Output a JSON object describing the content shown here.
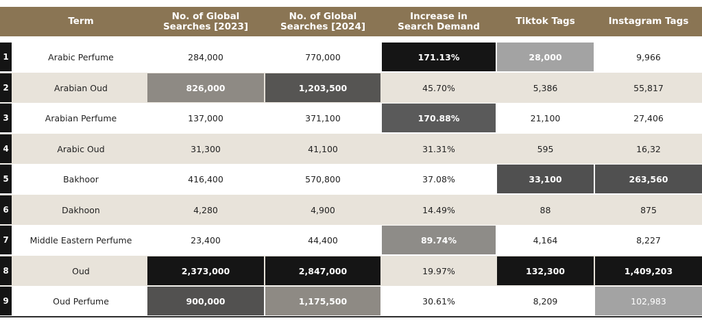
{
  "columns": [
    "Term",
    "No. of Global\nSearches [2023]",
    "No. of Global\nSearches [2024]",
    "Increase in\nSearch Demand",
    "Tiktok Tags",
    "Instagram Tags"
  ],
  "rows": [
    {
      "num": "1",
      "term": "Arabic Perfume",
      "s2023": "284,000",
      "s2024": "770,000",
      "increase": "171.13%",
      "tiktok": "28,000",
      "instagram": "9,966"
    },
    {
      "num": "2",
      "term": "Arabian Oud",
      "s2023": "826,000",
      "s2024": "1,203,500",
      "increase": "45.70%",
      "tiktok": "5,386",
      "instagram": "55,817"
    },
    {
      "num": "3",
      "term": "Arabian Perfume",
      "s2023": "137,000",
      "s2024": "371,100",
      "increase": "170.88%",
      "tiktok": "21,100",
      "instagram": "27,406"
    },
    {
      "num": "4",
      "term": "Arabic Oud",
      "s2023": "31,300",
      "s2024": "41,100",
      "increase": "31.31%",
      "tiktok": "595",
      "instagram": "16,32"
    },
    {
      "num": "5",
      "term": "Bakhoor",
      "s2023": "416,400",
      "s2024": "570,800",
      "increase": "37.08%",
      "tiktok": "33,100",
      "instagram": "263,560"
    },
    {
      "num": "6",
      "term": "Dakhoon",
      "s2023": "4,280",
      "s2024": "4,900",
      "increase": "14.49%",
      "tiktok": "88",
      "instagram": "875"
    },
    {
      "num": "7",
      "term": "Middle Eastern Perfume",
      "s2023": "23,400",
      "s2024": "44,400",
      "increase": "89.74%",
      "tiktok": "4,164",
      "instagram": "8,227"
    },
    {
      "num": "8",
      "term": "Oud",
      "s2023": "2,373,000",
      "s2024": "2,847,000",
      "increase": "19.97%",
      "tiktok": "132,300",
      "instagram": "1,409,203"
    },
    {
      "num": "9",
      "term": "Oud Perfume",
      "s2023": "900,000",
      "s2024": "1,175,500",
      "increase": "30.61%",
      "tiktok": "8,209",
      "instagram": "102,983"
    }
  ],
  "highlights": [
    {
      "row": 0,
      "col": "increase",
      "color": "#151515"
    },
    {
      "row": 0,
      "col": "tiktok",
      "color": "#a3a3a3"
    },
    {
      "row": 1,
      "col": "s2023",
      "color": "#8e8a84"
    },
    {
      "row": 1,
      "col": "s2024",
      "color": "#565553"
    },
    {
      "row": 2,
      "col": "increase",
      "color": "#5a5a5a"
    },
    {
      "row": 4,
      "col": "tiktok",
      "color": "#505050"
    },
    {
      "row": 4,
      "col": "instagram",
      "color": "#505050"
    },
    {
      "row": 6,
      "col": "increase",
      "color": "#8e8c88"
    },
    {
      "row": 7,
      "col": "s2023",
      "color": "#151515"
    },
    {
      "row": 7,
      "col": "s2024",
      "color": "#151515"
    },
    {
      "row": 7,
      "col": "tiktok",
      "color": "#151515"
    },
    {
      "row": 7,
      "col": "instagram",
      "color": "#151515"
    },
    {
      "row": 8,
      "col": "s2023",
      "color": "#525150"
    },
    {
      "row": 8,
      "col": "s2024",
      "color": "#8e8a84"
    },
    {
      "row": 8,
      "col": "instagram",
      "color": "#a3a3a3"
    }
  ],
  "colors": {
    "header_bg": "#8a7554",
    "row_alt_bg": "#e8e3da",
    "number_bg": "#141414"
  }
}
